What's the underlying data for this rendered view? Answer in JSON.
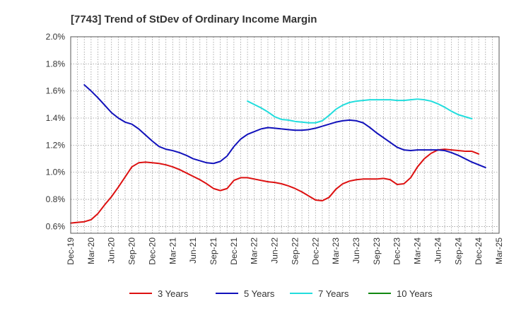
{
  "chart_data": {
    "type": "line",
    "title": "[7743]  Trend of StDev of Ordinary Income Margin",
    "xlabel": "",
    "ylabel": "",
    "x_tick_labels": [
      "Dec-19",
      "Mar-20",
      "Jun-20",
      "Sep-20",
      "Dec-20",
      "Mar-21",
      "Jun-21",
      "Sep-21",
      "Dec-21",
      "Mar-22",
      "Jun-22",
      "Sep-22",
      "Dec-22",
      "Mar-23",
      "Jun-23",
      "Sep-23",
      "Dec-23",
      "Mar-24",
      "Jun-24",
      "Sep-24",
      "Dec-24",
      "Mar-25"
    ],
    "y_tick_labels": [
      "0.6%",
      "0.8%",
      "1.0%",
      "1.2%",
      "1.4%",
      "1.6%",
      "1.8%",
      "2.0%"
    ],
    "ylim": [
      0.55,
      2.0
    ],
    "y_ticks": [
      0.6,
      0.8,
      1.0,
      1.2,
      1.4,
      1.6,
      1.8,
      2.0
    ],
    "grid": true,
    "legend_position": "bottom",
    "x_start": "2019-12",
    "x_months": [
      "2019-12",
      "2020-01",
      "2020-02",
      "2020-03",
      "2020-04",
      "2020-05",
      "2020-06",
      "2020-07",
      "2020-08",
      "2020-09",
      "2020-10",
      "2020-11",
      "2020-12",
      "2021-01",
      "2021-02",
      "2021-03",
      "2021-04",
      "2021-05",
      "2021-06",
      "2021-07",
      "2021-08",
      "2021-09",
      "2021-10",
      "2021-11",
      "2021-12",
      "2022-01",
      "2022-02",
      "2022-03",
      "2022-04",
      "2022-05",
      "2022-06",
      "2022-07",
      "2022-08",
      "2022-09",
      "2022-10",
      "2022-11",
      "2022-12",
      "2023-01",
      "2023-02",
      "2023-03",
      "2023-04",
      "2023-05",
      "2023-06",
      "2023-07",
      "2023-08",
      "2023-09",
      "2023-10",
      "2023-11",
      "2023-12",
      "2024-01",
      "2024-02",
      "2024-03",
      "2024-04",
      "2024-05",
      "2024-06",
      "2024-07",
      "2024-08",
      "2024-09",
      "2024-10",
      "2024-11",
      "2024-12",
      "2025-01",
      "2025-02",
      "2025-03"
    ],
    "series": [
      {
        "name": "3 Years",
        "color": "#dd1111",
        "start_month": "2019-12",
        "values": [
          0.625,
          0.63,
          0.635,
          0.65,
          0.695,
          0.76,
          0.82,
          0.89,
          0.965,
          1.04,
          1.07,
          1.075,
          1.07,
          1.065,
          1.055,
          1.04,
          1.02,
          0.995,
          0.97,
          0.945,
          0.915,
          0.88,
          0.865,
          0.88,
          0.94,
          0.96,
          0.96,
          0.95,
          0.94,
          0.93,
          0.925,
          0.915,
          0.9,
          0.88,
          0.855,
          0.825,
          0.795,
          0.79,
          0.815,
          0.875,
          0.915,
          0.935,
          0.945,
          0.95,
          0.95,
          0.95,
          0.955,
          0.945,
          0.91,
          0.915,
          0.96,
          1.04,
          1.1,
          1.14,
          1.165,
          1.17,
          1.165,
          1.16,
          1.155,
          1.155,
          1.135
        ]
      },
      {
        "name": "5 Years",
        "color": "#1111bb",
        "start_month": "2020-02",
        "values": [
          1.645,
          1.6,
          1.55,
          1.495,
          1.44,
          1.4,
          1.37,
          1.355,
          1.32,
          1.275,
          1.23,
          1.19,
          1.17,
          1.16,
          1.145,
          1.125,
          1.1,
          1.085,
          1.07,
          1.065,
          1.08,
          1.12,
          1.19,
          1.245,
          1.28,
          1.3,
          1.32,
          1.33,
          1.325,
          1.32,
          1.315,
          1.31,
          1.31,
          1.315,
          1.325,
          1.34,
          1.355,
          1.37,
          1.38,
          1.385,
          1.38,
          1.365,
          1.33,
          1.29,
          1.255,
          1.22,
          1.185,
          1.165,
          1.16,
          1.165,
          1.165,
          1.165,
          1.165,
          1.16,
          1.145,
          1.125,
          1.1,
          1.075,
          1.055,
          1.035
        ]
      },
      {
        "name": "7 Years",
        "color": "#22dddd",
        "start_month": "2022-02",
        "values": [
          1.525,
          1.5,
          1.475,
          1.445,
          1.41,
          1.39,
          1.385,
          1.375,
          1.37,
          1.365,
          1.365,
          1.38,
          1.42,
          1.465,
          1.495,
          1.515,
          1.525,
          1.53,
          1.535,
          1.535,
          1.535,
          1.535,
          1.53,
          1.53,
          1.535,
          1.54,
          1.535,
          1.525,
          1.505,
          1.48,
          1.45,
          1.425,
          1.41,
          1.395
        ]
      },
      {
        "name": "10 Years",
        "color": "#118811",
        "start_month": "2024-12",
        "values": []
      }
    ]
  }
}
